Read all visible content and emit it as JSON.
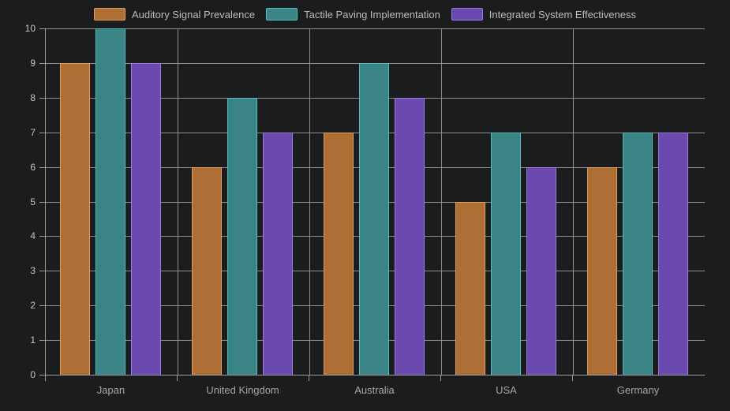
{
  "page": {
    "background": "#1a1c1e"
  },
  "chart_data": {
    "type": "bar",
    "title": "",
    "categories": [
      "Japan",
      "United Kingdom",
      "Australia",
      "USA",
      "Germany"
    ],
    "series": [
      {
        "name": "Auditory Signal Prevalence",
        "color": "#ae6f36",
        "border_color": "#e39c5a",
        "values": [
          9,
          6,
          7,
          5,
          6
        ]
      },
      {
        "name": "Tactile Paving Implementation",
        "color": "#3b8486",
        "border_color": "#54bdbf",
        "values": [
          10,
          8,
          9,
          7,
          7
        ]
      },
      {
        "name": "Integrated System Effectiveness",
        "color": "#6b4ab0",
        "border_color": "#9b7ad9",
        "values": [
          9,
          7,
          8,
          6,
          7
        ]
      }
    ],
    "xlabel": "",
    "ylabel": "",
    "ylim": [
      0,
      10
    ],
    "y_ticks": [
      "0",
      "1",
      "2",
      "3",
      "4",
      "5",
      "6",
      "7",
      "8",
      "9",
      "10"
    ],
    "grid": true,
    "legend_position": "top",
    "grid_color": "#8c8d8e",
    "axis_color": "#9a9b9c",
    "tick_label_color": "#c5c5c5",
    "category_label_color": "#a6a6a6",
    "legend_text_color": "#bdbdbd"
  }
}
